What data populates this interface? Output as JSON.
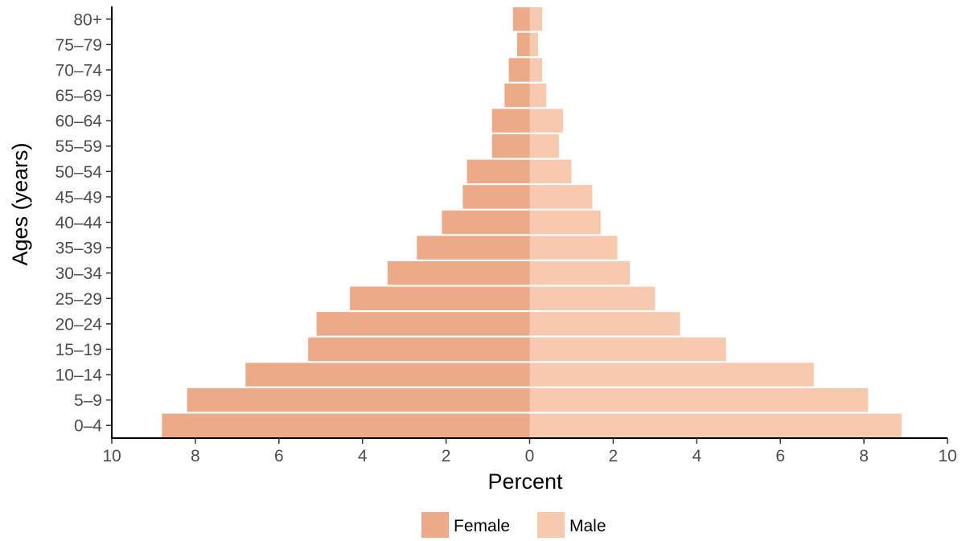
{
  "chart_data": {
    "type": "bar",
    "orientation": "horizontal",
    "layout": "population-pyramid",
    "categories": [
      "0–4",
      "5–9",
      "10–14",
      "15–19",
      "20–24",
      "25–29",
      "30–34",
      "35–39",
      "40–44",
      "45–49",
      "50–54",
      "55–59",
      "60–64",
      "65–69",
      "70–74",
      "75–79",
      "80+"
    ],
    "series": [
      {
        "name": "Female",
        "side": "left",
        "color": "#EDAA88",
        "values": [
          8.8,
          8.2,
          6.8,
          5.3,
          5.1,
          4.3,
          3.4,
          2.7,
          2.1,
          1.6,
          1.5,
          0.9,
          0.9,
          0.6,
          0.5,
          0.3,
          0.4
        ]
      },
      {
        "name": "Male",
        "side": "right",
        "color": "#F7C9AF",
        "values": [
          8.9,
          8.1,
          6.8,
          4.7,
          3.6,
          3.0,
          2.4,
          2.1,
          1.7,
          1.5,
          1.0,
          0.7,
          0.8,
          0.4,
          0.3,
          0.2,
          0.3
        ]
      }
    ],
    "xlabel": "Percent",
    "ylabel": "Ages (years)",
    "xlim": [
      -10,
      10
    ],
    "xticks": [
      -10,
      -8,
      -6,
      -4,
      -2,
      0,
      2,
      4,
      6,
      8,
      10
    ],
    "xtick_labels": [
      "10",
      "8",
      "6",
      "4",
      "2",
      "0",
      "2",
      "4",
      "6",
      "8",
      "10"
    ],
    "grid": false,
    "legend_position": "bottom"
  }
}
